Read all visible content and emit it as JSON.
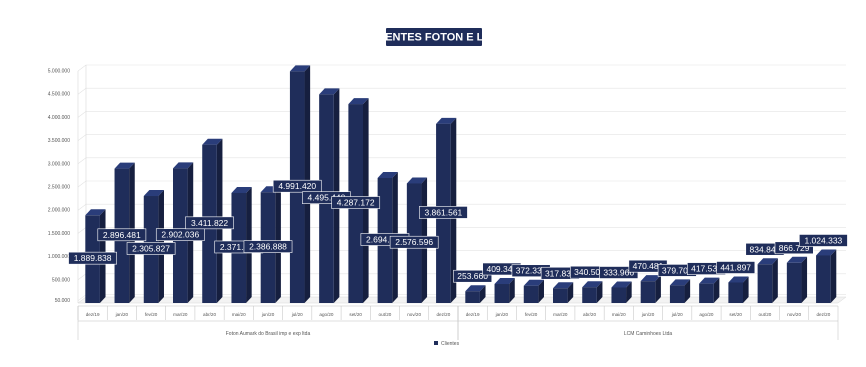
{
  "chart_data": {
    "type": "bar",
    "title": "CLIENTES FOTON E LCM",
    "y_ticks": [
      "50.000",
      "500.000",
      "1.000.000",
      "1.500.000",
      "2.000.000",
      "2.500.000",
      "3.000.000",
      "3.500.000",
      "4.000.000",
      "4.500.000",
      "5.000.000"
    ],
    "ylim": [
      0,
      5000000
    ],
    "grid": true,
    "legend_position": "bottom",
    "series": [
      {
        "name": "Clientes",
        "color": "#1f2d5a"
      }
    ],
    "groups": [
      {
        "label": "Foton Aumark do Brasil imp e exp ltda",
        "categories": [
          "dez/19",
          "jan/20",
          "fev/20",
          "mar/20",
          "abr/20",
          "mai/20",
          "jun/20",
          "jul/20",
          "ago/20",
          "set/20",
          "out/20",
          "nov/20",
          "dez/20"
        ],
        "values": [
          1889838,
          2896481,
          2305827,
          2902036,
          3411822,
          2371663,
          2386888,
          4991420,
          4495440,
          4287172,
          2694130,
          2576596,
          3861561
        ],
        "labels": [
          "1.889.838",
          "2.896.481",
          "2.305.827",
          "2.902.036",
          "3.411.822",
          "2.371.663",
          "2.386.888",
          "4.991.420",
          "4.495.440",
          "4.287.172",
          "2.694.130",
          "2.576.596",
          "3.861.561"
        ]
      },
      {
        "label": "LCM Caminhoes Ltda",
        "categories": [
          "dez/19",
          "jan/20",
          "fev/20",
          "mar/20",
          "abr/20",
          "mai/20",
          "jun/20",
          "jul/20",
          "ago/20",
          "set/20",
          "out/20",
          "nov/20",
          "dez/20"
        ],
        "values": [
          253660,
          409349,
          372333,
          317832,
          340506,
          333966,
          470481,
          379700,
          417536,
          441897,
          834844,
          866729,
          1024333
        ],
        "labels": [
          "253.660",
          "409.349",
          "372.333",
          "317.832",
          "340.506",
          "333.966",
          "470.481",
          "379.700",
          "417.536",
          "441.897",
          "834.844",
          "866.729",
          "1.024.333"
        ]
      }
    ]
  }
}
